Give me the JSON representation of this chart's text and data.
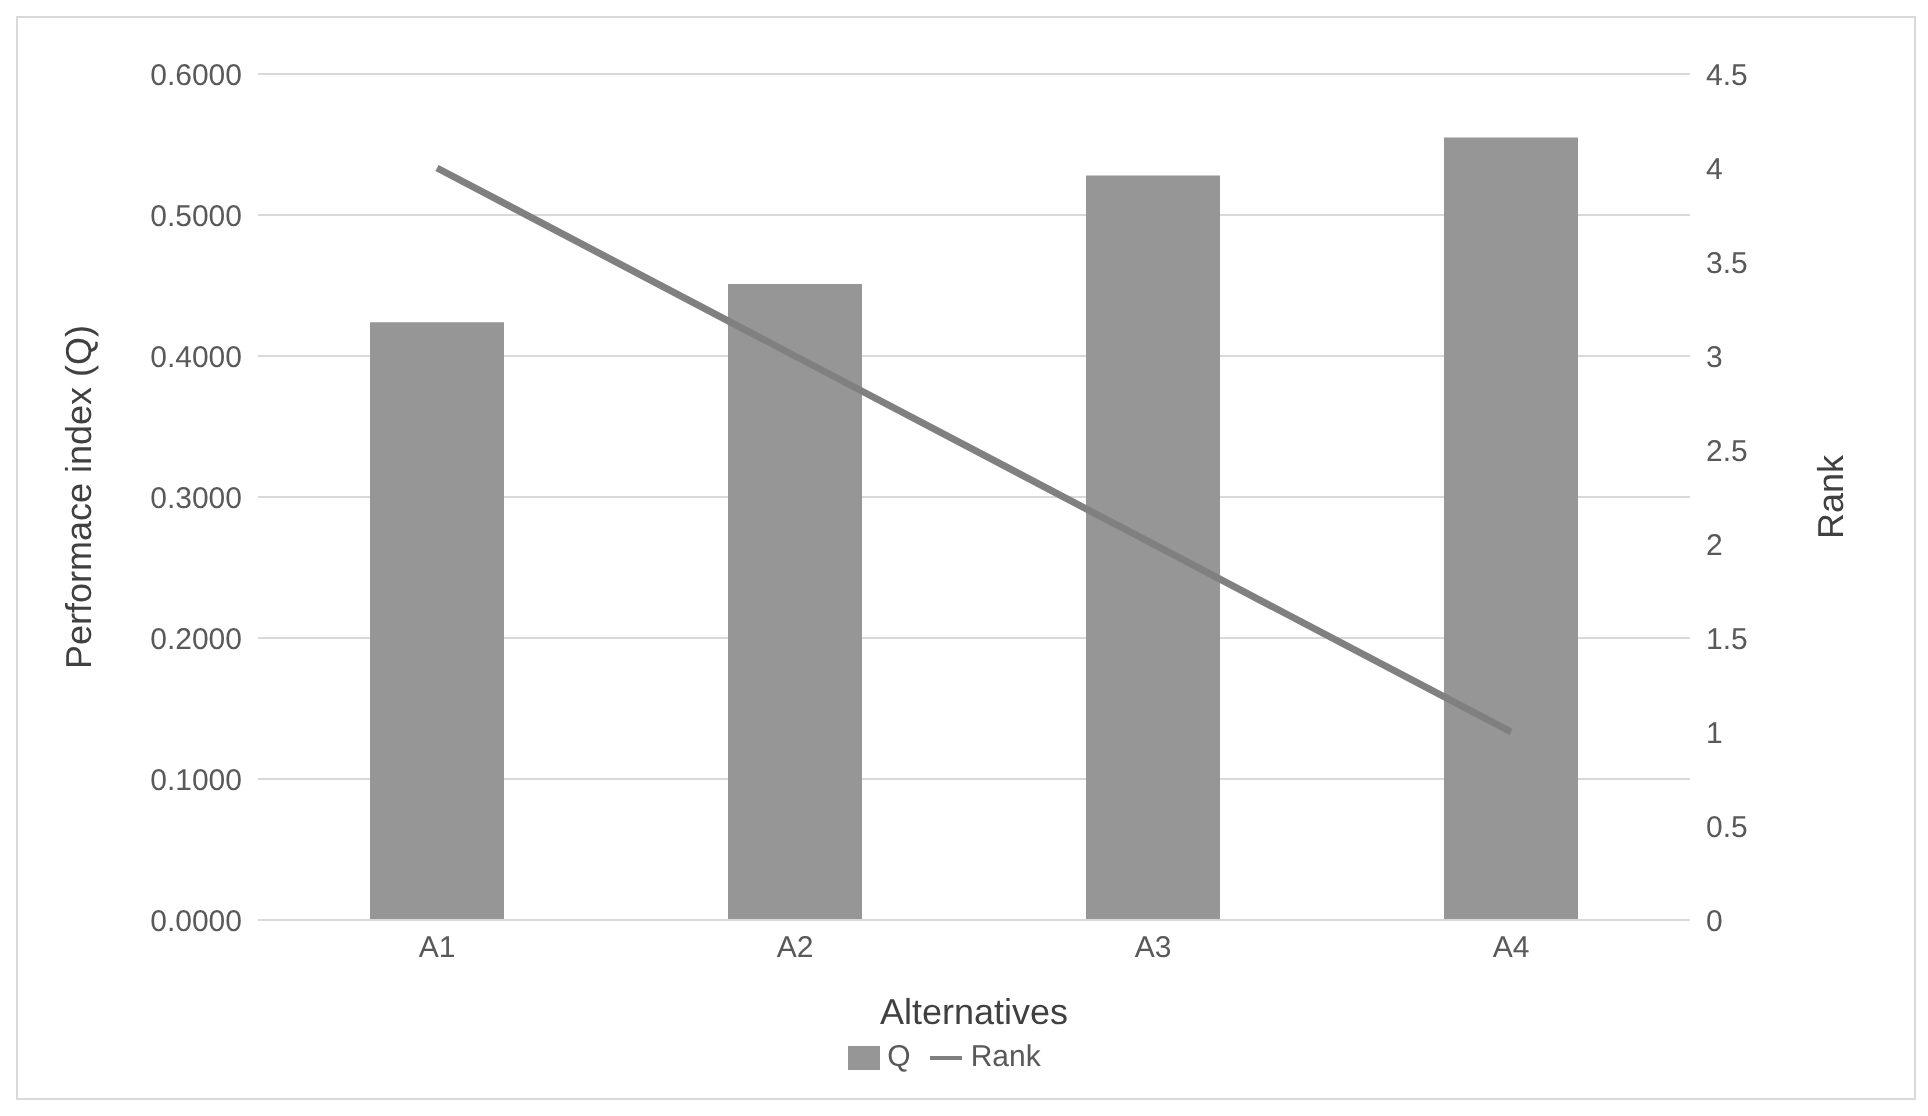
{
  "chart_data": {
    "type": "bar",
    "xlabel": "Alternatives",
    "ylabel": "Performace index (Q)",
    "y2label": "Rank",
    "categories": [
      "A1",
      "A2",
      "A3",
      "A4"
    ],
    "series": [
      {
        "name": "Q",
        "color": "#969696",
        "values": [
          0.424,
          0.451,
          0.528,
          0.555
        ]
      },
      {
        "name": "Rank",
        "type": "line",
        "axis": "y2",
        "color": "#808080",
        "values": [
          4,
          3,
          2,
          1
        ]
      }
    ],
    "ylim": [
      0,
      0.6
    ],
    "yticks": [
      {
        "value": 0,
        "label": "0.0000"
      },
      {
        "value": 0.1,
        "label": "0.1000"
      },
      {
        "value": 0.2,
        "label": "0.2000"
      },
      {
        "value": 0.3,
        "label": "0.3000"
      },
      {
        "value": 0.4,
        "label": "0.4000"
      },
      {
        "value": 0.5,
        "label": "0.5000"
      },
      {
        "value": 0.6,
        "label": "0.6000"
      }
    ],
    "y2lim": [
      0,
      4.5
    ],
    "y2ticks": [
      0,
      0.5,
      1,
      1.5,
      2,
      2.5,
      3,
      3.5,
      4,
      4.5
    ],
    "grid": "y",
    "legend": "bottom",
    "marker": "none",
    "line_style": "solid"
  }
}
